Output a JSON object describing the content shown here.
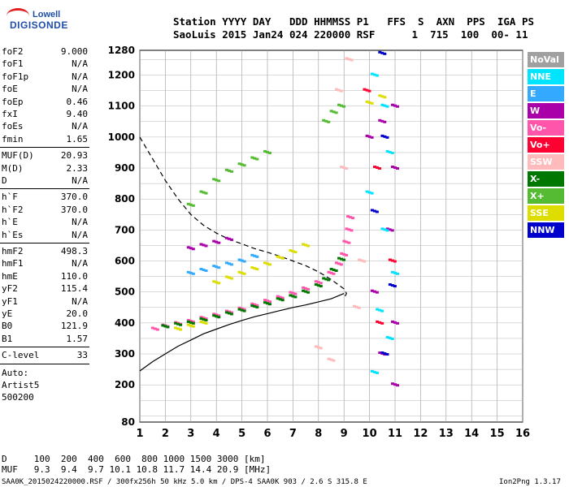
{
  "logo": {
    "line1": "Lowell",
    "line2": "DIGISONDE"
  },
  "header": {
    "row1": "Station YYYY DAY   DDD HHMMSS P1   FFS  S  AXN  PPS  IGA PS",
    "row2": "SaoLuis 2015 Jan24 024 220000 RSF      1  715  100  00- 11"
  },
  "params": {
    "group1": [
      {
        "name": "foF2",
        "value": "9.000"
      },
      {
        "name": "foF1",
        "value": "N/A"
      },
      {
        "name": "foF1p",
        "value": "N/A"
      },
      {
        "name": "foE",
        "value": "N/A"
      },
      {
        "name": "foEp",
        "value": "0.46"
      },
      {
        "name": "fxI",
        "value": "9.40"
      },
      {
        "name": "foEs",
        "value": "N/A"
      },
      {
        "name": "fmin",
        "value": "1.65"
      }
    ],
    "group2": [
      {
        "name": "MUF(D)",
        "value": "20.93"
      },
      {
        "name": "M(D)",
        "value": "2.33"
      },
      {
        "name": "D",
        "value": "N/A"
      }
    ],
    "group3": [
      {
        "name": "h`F",
        "value": "370.0"
      },
      {
        "name": "h`F2",
        "value": "370.0"
      },
      {
        "name": "h`E",
        "value": "N/A"
      },
      {
        "name": "h`Es",
        "value": "N/A"
      }
    ],
    "group4": [
      {
        "name": "hmF2",
        "value": "498.3"
      },
      {
        "name": "hmF1",
        "value": "N/A"
      },
      {
        "name": "hmE",
        "value": "110.0"
      },
      {
        "name": "yF2",
        "value": "115.4"
      },
      {
        "name": "yF1",
        "value": "N/A"
      },
      {
        "name": "yE",
        "value": "20.0"
      },
      {
        "name": "B0",
        "value": "121.9"
      },
      {
        "name": "B1",
        "value": "1.57"
      }
    ],
    "group5": [
      {
        "name": "C-level",
        "value": "33"
      }
    ],
    "autoscale": [
      "Auto:",
      "Artist5",
      "500200"
    ]
  },
  "legend": [
    {
      "label": "NoVal",
      "color": "#a0a0a0"
    },
    {
      "label": "NNE",
      "color": "#00e5ff"
    },
    {
      "label": "E",
      "color": "#33aaff"
    },
    {
      "label": "W",
      "color": "#aa00aa"
    },
    {
      "label": "Vo-",
      "color": "#ff55aa"
    },
    {
      "label": "Vo+",
      "color": "#ff0033"
    },
    {
      "label": "SSW",
      "color": "#ffbbbb"
    },
    {
      "label": "X-",
      "color": "#007700"
    },
    {
      "label": "X+",
      "color": "#55bb33"
    },
    {
      "label": "SSE",
      "color": "#dddd00"
    },
    {
      "label": "NNW",
      "color": "#0000cc"
    }
  ],
  "footer": {
    "d_row": "D     100  200  400  600  800 1000 1500 3000 [km]",
    "muf_row": "MUF   9.3  9.4  9.7 10.1 10.8 11.7 14.4 20.9 [MHz]",
    "file_line": "SAA0K_2015024220000.RSF / 300fx256h 50 kHz 5.0 km / DPS-4 SAA0K 903 / 2.6 S 315.8 E",
    "version": "Ion2Png 1.3.17"
  },
  "chart_data": {
    "type": "scatter",
    "title": "",
    "xlabel": "",
    "ylabel": "",
    "xlim": [
      1,
      16
    ],
    "ylim": [
      80,
      1280
    ],
    "x_ticks": [
      1,
      2,
      3,
      4,
      5,
      6,
      7,
      8,
      9,
      10,
      11,
      12,
      13,
      14,
      15,
      16
    ],
    "y_ticks": [
      80,
      200,
      300,
      400,
      500,
      600,
      700,
      800,
      900,
      1000,
      1100,
      1200,
      1280
    ],
    "grid": true,
    "series": [
      {
        "name": "Vo-",
        "color": "#ff55aa",
        "points": [
          [
            1.6,
            380
          ],
          [
            2,
            390
          ],
          [
            2.5,
            398
          ],
          [
            3,
            405
          ],
          [
            3.5,
            415
          ],
          [
            4,
            425
          ],
          [
            4.5,
            435
          ],
          [
            5,
            445
          ],
          [
            5.5,
            458
          ],
          [
            6,
            470
          ],
          [
            6.5,
            482
          ],
          [
            7,
            495
          ],
          [
            7.5,
            510
          ],
          [
            8,
            530
          ],
          [
            8.5,
            560
          ],
          [
            8.8,
            590
          ],
          [
            9,
            620
          ],
          [
            9.1,
            660
          ],
          [
            9.2,
            700
          ],
          [
            9.25,
            740
          ]
        ]
      },
      {
        "name": "X-",
        "color": "#007700",
        "points": [
          [
            2,
            388
          ],
          [
            2.5,
            395
          ],
          [
            3,
            400
          ],
          [
            3.5,
            410
          ],
          [
            4,
            420
          ],
          [
            4.5,
            430
          ],
          [
            5,
            440
          ],
          [
            5.5,
            452
          ],
          [
            6,
            462
          ],
          [
            6.5,
            475
          ],
          [
            7,
            485
          ],
          [
            7.5,
            500
          ],
          [
            8,
            520
          ],
          [
            8.3,
            540
          ],
          [
            8.6,
            570
          ],
          [
            8.9,
            605
          ]
        ]
      },
      {
        "name": "X+",
        "color": "#55bb33",
        "points": [
          [
            3,
            780
          ],
          [
            3.5,
            820
          ],
          [
            4,
            860
          ],
          [
            4.5,
            890
          ],
          [
            5,
            910
          ],
          [
            5.5,
            930
          ],
          [
            6,
            950
          ],
          [
            8.3,
            1050
          ],
          [
            8.6,
            1080
          ],
          [
            8.9,
            1100
          ]
        ]
      },
      {
        "name": "SSE",
        "color": "#dddd00",
        "points": [
          [
            2.5,
            380
          ],
          [
            3,
            390
          ],
          [
            3.5,
            400
          ],
          [
            4,
            530
          ],
          [
            4.5,
            545
          ],
          [
            5,
            560
          ],
          [
            5.5,
            575
          ],
          [
            6,
            590
          ],
          [
            6.5,
            610
          ],
          [
            7,
            630
          ],
          [
            7.5,
            650
          ],
          [
            10,
            1110
          ],
          [
            10.5,
            1130
          ]
        ]
      },
      {
        "name": "E",
        "color": "#33aaff",
        "points": [
          [
            3,
            560
          ],
          [
            3.5,
            570
          ],
          [
            4,
            580
          ],
          [
            4.5,
            590
          ],
          [
            5,
            600
          ],
          [
            5.5,
            615
          ]
        ]
      },
      {
        "name": "W",
        "color": "#aa00aa",
        "points": [
          [
            3,
            640
          ],
          [
            3.5,
            650
          ],
          [
            4,
            660
          ],
          [
            4.5,
            670
          ],
          [
            10,
            1000
          ],
          [
            10.5,
            1050
          ],
          [
            11,
            1100
          ],
          [
            11,
            900
          ],
          [
            10.8,
            700
          ],
          [
            10.2,
            500
          ],
          [
            11,
            400
          ],
          [
            10.5,
            300
          ],
          [
            11,
            200
          ]
        ]
      },
      {
        "name": "SSW",
        "color": "#ffbbbb",
        "points": [
          [
            8,
            320
          ],
          [
            8.5,
            280
          ],
          [
            9.5,
            450
          ],
          [
            9.7,
            600
          ],
          [
            9,
            900
          ],
          [
            8.8,
            1150
          ],
          [
            9.2,
            1250
          ]
        ]
      },
      {
        "name": "NNE",
        "color": "#00e5ff",
        "points": [
          [
            10.2,
            1200
          ],
          [
            10.6,
            1100
          ],
          [
            10.8,
            950
          ],
          [
            10,
            820
          ],
          [
            10.6,
            700
          ],
          [
            11,
            560
          ],
          [
            10.4,
            440
          ],
          [
            10.8,
            350
          ],
          [
            10.2,
            240
          ]
        ]
      },
      {
        "name": "Vo+",
        "color": "#ff0033",
        "points": [
          [
            9.9,
            1150
          ],
          [
            10.3,
            900
          ],
          [
            10.9,
            600
          ],
          [
            10.4,
            400
          ]
        ]
      },
      {
        "name": "NNW",
        "color": "#0000cc",
        "points": [
          [
            10.5,
            1270
          ],
          [
            10.6,
            1000
          ],
          [
            10.2,
            760
          ],
          [
            10.9,
            520
          ],
          [
            10.6,
            300
          ]
        ]
      }
    ],
    "profile_curve": {
      "x": [
        1,
        1.5,
        2,
        2.5,
        3,
        3.5,
        4,
        4.5,
        5,
        5.5,
        6,
        6.5,
        7,
        7.5,
        8,
        8.5,
        9
      ],
      "y": [
        245,
        275,
        300,
        325,
        345,
        365,
        380,
        395,
        408,
        420,
        430,
        440,
        450,
        458,
        468,
        478,
        495
      ]
    },
    "dashed_curve": {
      "x": [
        1,
        1.5,
        2,
        2.5,
        3,
        3.5,
        4,
        4.5,
        5,
        5.5,
        6,
        6.5,
        7,
        7.5,
        8,
        8.5,
        9,
        9.1,
        9
      ],
      "y": [
        1000,
        930,
        860,
        800,
        750,
        715,
        690,
        670,
        655,
        640,
        628,
        615,
        600,
        585,
        565,
        540,
        510,
        495,
        480
      ]
    }
  }
}
